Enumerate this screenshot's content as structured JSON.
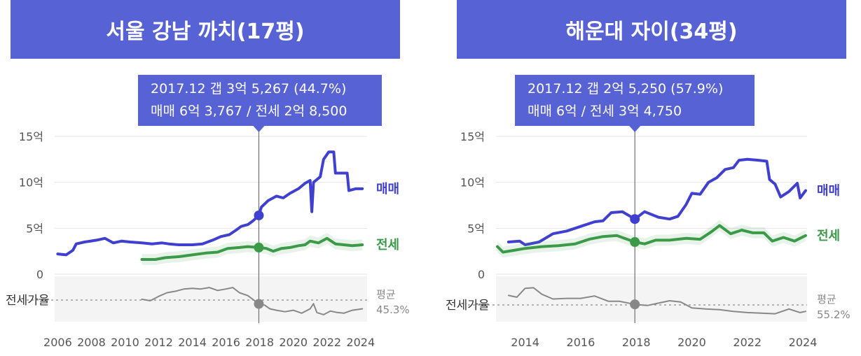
{
  "colors": {
    "title_bg": "#5762d5",
    "sale": "#4040d0",
    "jeonse": "#3a9a48",
    "ratio": "#888888",
    "callout_bg": "#5762d5"
  },
  "chart_data": [
    {
      "type": "line",
      "title": "서울 강남 까치(17평)",
      "callout": {
        "line1": "2017.12  갭 3억 5,267 (44.7%)",
        "line2": "매매 6억 3,767 / 전세 2억 8,500"
      },
      "x_ticks": [
        "2006",
        "2008",
        "2010",
        "2012",
        "2014",
        "2016",
        "2018",
        "2020",
        "2022",
        "2024"
      ],
      "y_ticks": [
        "15억",
        "10억",
        "5억",
        "0"
      ],
      "xlim": [
        2005.9,
        2024.3
      ],
      "ylim": [
        0,
        15
      ],
      "marker_x": 2017.95,
      "ratio_label": "전세가율",
      "avg_label": "평균",
      "avg_value": "45.3%",
      "series": [
        {
          "name": "매매",
          "points": [
            [
              2006,
              2.2
            ],
            [
              2006.5,
              2.1
            ],
            [
              2006.9,
              2.6
            ],
            [
              2007.1,
              3.3
            ],
            [
              2007.6,
              3.5
            ],
            [
              2008.3,
              3.7
            ],
            [
              2008.8,
              3.9
            ],
            [
              2009.3,
              3.4
            ],
            [
              2009.8,
              3.6
            ],
            [
              2010.3,
              3.5
            ],
            [
              2011,
              3.4
            ],
            [
              2011.6,
              3.3
            ],
            [
              2012.2,
              3.4
            ],
            [
              2012.6,
              3.3
            ],
            [
              2013.2,
              3.2
            ],
            [
              2014,
              3.2
            ],
            [
              2014.6,
              3.3
            ],
            [
              2015.2,
              3.7
            ],
            [
              2015.7,
              4.1
            ],
            [
              2016.2,
              4.3
            ],
            [
              2016.6,
              4.8
            ],
            [
              2016.9,
              5.2
            ],
            [
              2017.3,
              5.4
            ],
            [
              2017.6,
              5.8
            ],
            [
              2017.95,
              6.4
            ],
            [
              2018.1,
              7.3
            ],
            [
              2018.5,
              8.0
            ],
            [
              2019,
              8.5
            ],
            [
              2019.4,
              8.3
            ],
            [
              2019.8,
              8.8
            ],
            [
              2020.3,
              9.3
            ],
            [
              2020.7,
              9.9
            ],
            [
              2021,
              10.2
            ],
            [
              2021.1,
              6.8
            ],
            [
              2021.2,
              10.0
            ],
            [
              2021.6,
              10.6
            ],
            [
              2021.8,
              12.5
            ],
            [
              2022.1,
              13.3
            ],
            [
              2022.4,
              13.3
            ],
            [
              2022.5,
              11.0
            ],
            [
              2022.9,
              11.0
            ],
            [
              2023.2,
              11.0
            ],
            [
              2023.3,
              9.1
            ],
            [
              2023.7,
              9.3
            ],
            [
              2024,
              9.3
            ],
            [
              2024.1,
              9.3
            ]
          ]
        },
        {
          "name": "전세",
          "points": [
            [
              2011,
              1.6
            ],
            [
              2011.8,
              1.6
            ],
            [
              2012.4,
              1.8
            ],
            [
              2013.2,
              1.9
            ],
            [
              2014,
              2.1
            ],
            [
              2014.8,
              2.3
            ],
            [
              2015.5,
              2.4
            ],
            [
              2016.1,
              2.8
            ],
            [
              2016.8,
              2.9
            ],
            [
              2017.3,
              3.0
            ],
            [
              2017.95,
              2.9
            ],
            [
              2018.4,
              2.8
            ],
            [
              2018.8,
              2.5
            ],
            [
              2019.3,
              2.8
            ],
            [
              2019.8,
              2.9
            ],
            [
              2020.3,
              3.1
            ],
            [
              2020.7,
              3.2
            ],
            [
              2021,
              3.6
            ],
            [
              2021.5,
              3.4
            ],
            [
              2022,
              3.9
            ],
            [
              2022.5,
              3.3
            ],
            [
              2023,
              3.2
            ],
            [
              2023.5,
              3.1
            ],
            [
              2024.1,
              3.2
            ]
          ]
        },
        {
          "name": "전세가율",
          "points": [
            [
              2011,
              51
            ],
            [
              2011.5,
              49
            ],
            [
              2012,
              55
            ],
            [
              2012.5,
              60
            ],
            [
              2013,
              62
            ],
            [
              2013.5,
              65
            ],
            [
              2014,
              66
            ],
            [
              2014.5,
              65
            ],
            [
              2015,
              67
            ],
            [
              2015.5,
              63
            ],
            [
              2016,
              65
            ],
            [
              2016.4,
              67
            ],
            [
              2016.8,
              60
            ],
            [
              2017.3,
              56
            ],
            [
              2017.95,
              44.7
            ],
            [
              2018.3,
              43
            ],
            [
              2018.6,
              38
            ],
            [
              2019,
              36
            ],
            [
              2019.5,
              34
            ],
            [
              2020,
              36
            ],
            [
              2020.5,
              32
            ],
            [
              2021,
              38
            ],
            [
              2021.2,
              45
            ],
            [
              2021.4,
              33
            ],
            [
              2021.8,
              30
            ],
            [
              2022.2,
              35
            ],
            [
              2022.6,
              33
            ],
            [
              2023,
              32
            ],
            [
              2023.5,
              36
            ],
            [
              2024.1,
              38
            ]
          ]
        }
      ]
    },
    {
      "type": "line",
      "title": "해운대 자이(34평)",
      "callout": {
        "line1": "2017.12  갭 2억 5,250 (57.9%)",
        "line2": "매매 6억 / 전세 3억 4,750"
      },
      "x_ticks": [
        "2014",
        "2016",
        "2018",
        "2020",
        "2022",
        "2024"
      ],
      "y_ticks": [
        "15억",
        "10억",
        "5억",
        "0"
      ],
      "xlim": [
        2013.0,
        2024.1
      ],
      "ylim": [
        0,
        15
      ],
      "marker_x": 2017.95,
      "ratio_label": "전세가율",
      "avg_label": "평균",
      "avg_value": "55.2%",
      "series": [
        {
          "name": "매매",
          "points": [
            [
              2013.4,
              3.5
            ],
            [
              2013.8,
              3.6
            ],
            [
              2014,
              3.2
            ],
            [
              2014.5,
              3.5
            ],
            [
              2015,
              4.4
            ],
            [
              2015.5,
              4.7
            ],
            [
              2016,
              5.2
            ],
            [
              2016.5,
              5.7
            ],
            [
              2016.8,
              5.8
            ],
            [
              2017.1,
              6.7
            ],
            [
              2017.5,
              6.8
            ],
            [
              2017.95,
              6.0
            ],
            [
              2018.3,
              6.8
            ],
            [
              2018.8,
              6.2
            ],
            [
              2019.2,
              6.0
            ],
            [
              2019.5,
              6.3
            ],
            [
              2019.8,
              7.6
            ],
            [
              2020,
              8.8
            ],
            [
              2020.3,
              8.7
            ],
            [
              2020.6,
              10.0
            ],
            [
              2020.9,
              10.5
            ],
            [
              2021.2,
              11.4
            ],
            [
              2021.5,
              11.6
            ],
            [
              2021.7,
              12.4
            ],
            [
              2022,
              12.5
            ],
            [
              2022.4,
              12.4
            ],
            [
              2022.7,
              12.3
            ],
            [
              2022.8,
              10.3
            ],
            [
              2023,
              9.8
            ],
            [
              2023.2,
              8.4
            ],
            [
              2023.5,
              9.0
            ],
            [
              2023.8,
              9.9
            ],
            [
              2023.9,
              8.3
            ],
            [
              2024.1,
              9.1
            ]
          ]
        },
        {
          "name": "전세",
          "points": [
            [
              2013,
              3.0
            ],
            [
              2013.2,
              2.4
            ],
            [
              2013.6,
              2.6
            ],
            [
              2014,
              2.8
            ],
            [
              2014.6,
              3.0
            ],
            [
              2015.2,
              3.1
            ],
            [
              2015.8,
              3.3
            ],
            [
              2016.3,
              3.8
            ],
            [
              2016.8,
              4.1
            ],
            [
              2017.3,
              4.2
            ],
            [
              2017.95,
              3.5
            ],
            [
              2018.3,
              3.3
            ],
            [
              2018.7,
              3.7
            ],
            [
              2019.2,
              3.7
            ],
            [
              2019.8,
              3.9
            ],
            [
              2020.3,
              3.8
            ],
            [
              2020.7,
              4.6
            ],
            [
              2021,
              5.3
            ],
            [
              2021.4,
              4.4
            ],
            [
              2021.8,
              4.8
            ],
            [
              2022.2,
              4.5
            ],
            [
              2022.6,
              4.5
            ],
            [
              2022.9,
              3.6
            ],
            [
              2023.3,
              4.0
            ],
            [
              2023.7,
              3.6
            ],
            [
              2024.1,
              4.2
            ]
          ]
        },
        {
          "name": "전세가율",
          "points": [
            [
              2013.4,
              73
            ],
            [
              2013.7,
              70
            ],
            [
              2014,
              85
            ],
            [
              2014.3,
              86
            ],
            [
              2014.6,
              75
            ],
            [
              2015,
              67
            ],
            [
              2015.5,
              68
            ],
            [
              2016,
              68
            ],
            [
              2016.5,
              72
            ],
            [
              2017,
              63
            ],
            [
              2017.4,
              63
            ],
            [
              2017.95,
              57.9
            ],
            [
              2018.4,
              56
            ],
            [
              2018.8,
              60
            ],
            [
              2019.2,
              64
            ],
            [
              2019.6,
              62
            ],
            [
              2020,
              52
            ],
            [
              2020.5,
              50
            ],
            [
              2021,
              49
            ],
            [
              2021.5,
              46
            ],
            [
              2022,
              44
            ],
            [
              2022.5,
              43
            ],
            [
              2023,
              42
            ],
            [
              2023.5,
              50
            ],
            [
              2023.9,
              44
            ],
            [
              2024.1,
              46
            ]
          ]
        }
      ]
    }
  ]
}
